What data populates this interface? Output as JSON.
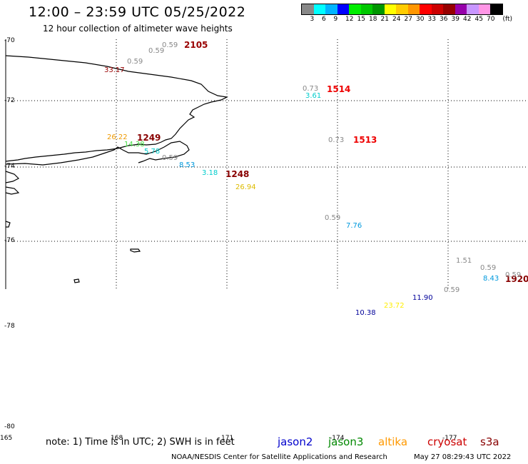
{
  "title": "12:00 – 23:59 UTC 05/25/2022",
  "subtitle": "12 hour collection of altimeter wave heights",
  "colorbar": {
    "colors": [
      "#888888",
      "#00ffff",
      "#00b4ff",
      "#0000ff",
      "#00ee00",
      "#00c800",
      "#009600",
      "#ffff00",
      "#ffcc00",
      "#ff9600",
      "#ff0000",
      "#cc0000",
      "#960000",
      "#9600aa",
      "#c896ff",
      "#ff96e6",
      "#000000"
    ],
    "labels": [
      "3",
      "6",
      "9",
      "12",
      "15",
      "18",
      "21",
      "24",
      "27",
      "30",
      "33",
      "36",
      "39",
      "42",
      "45",
      "70"
    ],
    "unit": "(ft)"
  },
  "lat_labels": [
    "-70",
    "-72",
    "-74",
    "-76",
    "-78",
    "-80"
  ],
  "lon_labels": [
    "165",
    "168",
    "171",
    "-174",
    "-177"
  ],
  "passes": [
    {
      "label": "2105",
      "color": "#990000"
    },
    {
      "label": "1514",
      "color": "#ee0000"
    },
    {
      "label": "1513",
      "color": "#ee0000"
    },
    {
      "label": "1249",
      "color": "#880000"
    },
    {
      "label": "1248",
      "color": "#880000"
    },
    {
      "label": "1920",
      "color": "#880000"
    }
  ],
  "values": [
    {
      "v": "0.59",
      "color": "#888888"
    },
    {
      "v": "0.59",
      "color": "#888888"
    },
    {
      "v": "0.59",
      "color": "#888888"
    },
    {
      "v": "33.17",
      "color": "#990000"
    },
    {
      "v": "0.73",
      "color": "#888888"
    },
    {
      "v": "3.61",
      "color": "#00cccc"
    },
    {
      "v": "0.73",
      "color": "#888888"
    },
    {
      "v": "26.22",
      "color": "#ee9900"
    },
    {
      "v": "14.38",
      "color": "#44dd44"
    },
    {
      "v": "5.78",
      "color": "#00cccc"
    },
    {
      "v": "0.59",
      "color": "#888888"
    },
    {
      "v": "8.53",
      "color": "#0099dd"
    },
    {
      "v": "3.18",
      "color": "#00cccc"
    },
    {
      "v": "26.94",
      "color": "#ddbb00"
    },
    {
      "v": "0.59",
      "color": "#888888"
    },
    {
      "v": "7.76",
      "color": "#0099dd"
    },
    {
      "v": "1.51",
      "color": "#888888"
    },
    {
      "v": "0.59",
      "color": "#888888"
    },
    {
      "v": "8.43",
      "color": "#0099dd"
    },
    {
      "v": "0.59",
      "color": "#888888"
    },
    {
      "v": "0.59",
      "color": "#888888"
    },
    {
      "v": "11.90",
      "color": "#000099"
    },
    {
      "v": "23.72",
      "color": "#ffee00"
    },
    {
      "v": "10.38",
      "color": "#000099"
    }
  ],
  "footnote": "note: 1) Time is in UTC; 2) SWH is in feet",
  "missions": [
    {
      "name": "jason2",
      "color": "#0000cc"
    },
    {
      "name": "jason3",
      "color": "#008800"
    },
    {
      "name": "altika",
      "color": "#ff9900"
    },
    {
      "name": "cryosat",
      "color": "#cc0000"
    },
    {
      "name": "s3a",
      "color": "#880000"
    }
  ],
  "credit": "NOAA/NESDIS Center for Satellite Applications and Research",
  "timestamp": "May 27 08:29:43 UTC 2022"
}
